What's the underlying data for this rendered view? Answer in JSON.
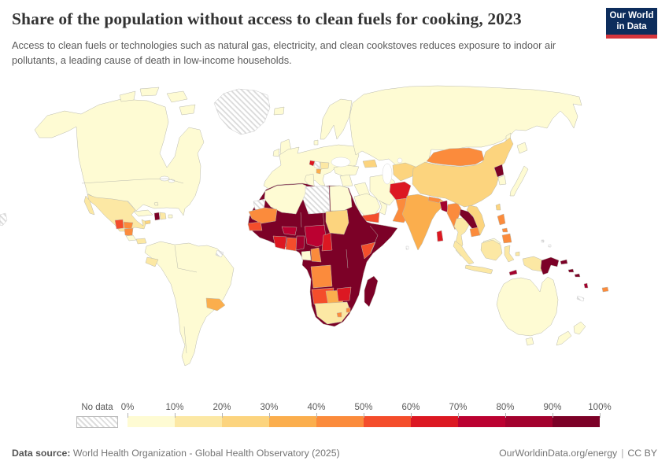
{
  "header": {
    "title": "Share of the population without access to clean fuels for cooking, 2023",
    "subtitle": "Access to clean fuels or technologies such as natural gas, electricity, and clean cookstoves reduces exposure to indoor air pollutants, a leading cause of death in low-income households.",
    "logo": {
      "line1": "Our World",
      "line2": "in Data",
      "bg_color": "#0D2D5C",
      "accent_color": "#D5353C"
    }
  },
  "legend": {
    "no_data_label": "No data",
    "ticks": [
      "0%",
      "10%",
      "20%",
      "30%",
      "40%",
      "50%",
      "60%",
      "70%",
      "80%",
      "90%",
      "100%"
    ]
  },
  "footer": {
    "source_label": "Data source:",
    "source_text": "World Health Organization - Global Health Observatory (2025)",
    "link_text": "OurWorldinData.org/energy",
    "separator": "|",
    "license_text": "CC BY"
  },
  "chart_data": {
    "type": "heatmap",
    "variant": "world-choropleth",
    "title": "Share of the population without access to clean fuels for cooking, 2023",
    "unit": "% of population",
    "legend_position": "bottom",
    "bins": [
      {
        "range": "0-10%",
        "color": "#FEFBD3"
      },
      {
        "range": "10-20%",
        "color": "#FCE8A4"
      },
      {
        "range": "20-30%",
        "color": "#FCD47E"
      },
      {
        "range": "30-40%",
        "color": "#FBAE4D"
      },
      {
        "range": "40-50%",
        "color": "#FB8B3C"
      },
      {
        "range": "50-60%",
        "color": "#F44D2B"
      },
      {
        "range": "60-70%",
        "color": "#DC1822"
      },
      {
        "range": "70-80%",
        "color": "#BB0131"
      },
      {
        "range": "80-90%",
        "color": "#A3012E"
      },
      {
        "range": "90-100%",
        "color": "#7C0127"
      }
    ],
    "no_data": {
      "label": "No data",
      "style": "diagonal-hatch"
    },
    "regions": {
      "north-america": 0,
      "arctic-islands": 0,
      "greenland": "nodata",
      "mexico": 1,
      "guatemala": 5,
      "honduras": 4,
      "nicaragua": 4,
      "costa-rica": 0,
      "panama": 1,
      "cuba": 0,
      "jamaica": 2,
      "haiti": 9,
      "dominican-republic": 1,
      "puerto-rico": 0,
      "bahamas": 0,
      "south-america": 0,
      "ecuador": 1,
      "paraguay": 3,
      "french-guiana": "nodata",
      "iceland": 0,
      "united-kingdom": 0,
      "ireland": 0,
      "scandinavia": 0,
      "denmark": 0,
      "europe": 0,
      "italy": 0,
      "bosnia-herzegovina": 6,
      "serbia": "nodata",
      "north-macedonia": 3,
      "bulgaria": 1,
      "russia": 0,
      "caucasus": 2,
      "turkey": 0,
      "levant": 0,
      "iraq": 0,
      "iran": 0,
      "saudi-arabia": 0,
      "yemen": 5,
      "oman": 0,
      "turkmenistan-uzbekistan": 2,
      "kyrgyzstan-tajikistan": 3,
      "afghanistan": 6,
      "pakistan": 4,
      "india": 3,
      "nepal": 4,
      "bangladesh": 8,
      "sri-lanka": 6,
      "myanmar": 4,
      "thailand": 1,
      "laos": 9,
      "vietnam": 2,
      "cambodia": 4,
      "malaysia": 0,
      "china": 2,
      "mongolia": 4,
      "north-korea": 9,
      "south-korea": 0,
      "japan": 0,
      "taiwan": 2,
      "philippines": 4,
      "indonesia": 1,
      "papua-new-guinea": 9,
      "solomon-islands": 9,
      "timor-leste": 8,
      "vanuatu": 8,
      "fiji": 4,
      "new-caledonia": "nodata",
      "australia": 0,
      "new-zealand": 0,
      "africa-dark-region": 9,
      "maghreb": 0,
      "libya": "nodata",
      "egypt": 0,
      "western-sahara": "nodata",
      "mauritania": 4,
      "senegal": 5,
      "burkina-faso": 7,
      "cote-divoire": 6,
      "ghana": 5,
      "togo-benin": 8,
      "nigeria": 7,
      "cameroon": 6,
      "sudan": 2,
      "kenya": 5,
      "gabon": 0,
      "congo": 4,
      "angola": 4,
      "namibia": 5,
      "botswana": 3,
      "zimbabwe": 6,
      "south-africa": 1,
      "lesotho": 4,
      "eswatini": 4,
      "madagascar": 9,
      "maldives": "nodata",
      "micronesia": "nodata",
      "pacific-fragment": "nodata",
      "mali": 9,
      "niger": 9,
      "chad": 9,
      "guinea": 9,
      "sierra-leone": 9,
      "liberia": 9,
      "guinea-bissau": 9,
      "south-sudan": 9,
      "eritrea": 9,
      "ethiopia": 9,
      "somalia": 9,
      "uganda": 9,
      "rwanda": 9,
      "burundi": 9,
      "dr-congo": 9,
      "central-african-republic": 9,
      "tanzania": 9,
      "zambia": 9,
      "malawi": 9,
      "mozambique": 9
    }
  }
}
